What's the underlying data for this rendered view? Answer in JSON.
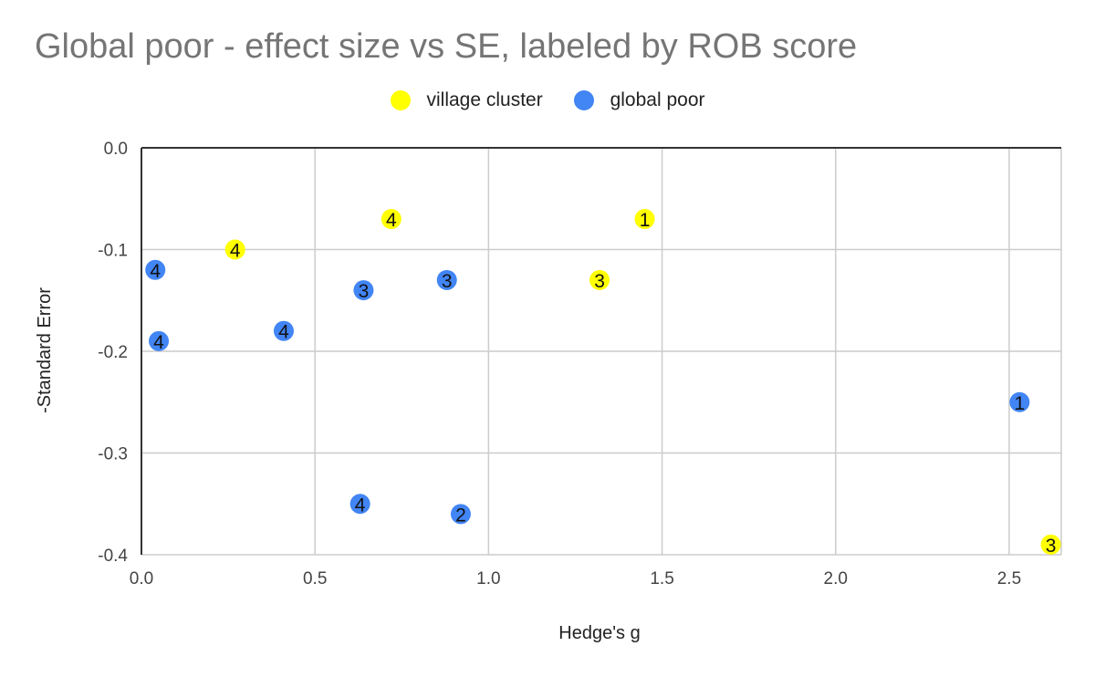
{
  "chart_data": {
    "type": "scatter",
    "title": "Global poor - effect size vs SE, labeled by ROB score",
    "xlabel": "Hedge's g",
    "ylabel": "-Standard Error",
    "xlim": [
      0.0,
      2.65
    ],
    "ylim": [
      -0.4,
      0.0
    ],
    "x_ticks": [
      "0.0",
      "0.5",
      "1.0",
      "1.5",
      "2.0",
      "2.5"
    ],
    "y_ticks": [
      "0.0",
      "-0.1",
      "-0.2",
      "-0.3",
      "-0.4"
    ],
    "legend_position": "top-center",
    "grid": true,
    "series": [
      {
        "name": "village cluster",
        "color": "#ffff00",
        "points": [
          {
            "x": 0.27,
            "y": -0.1,
            "label": "4"
          },
          {
            "x": 0.72,
            "y": -0.07,
            "label": "4"
          },
          {
            "x": 1.45,
            "y": -0.07,
            "label": "1"
          },
          {
            "x": 1.32,
            "y": -0.13,
            "label": "3"
          },
          {
            "x": 2.62,
            "y": -0.39,
            "label": "3"
          }
        ]
      },
      {
        "name": "global poor",
        "color": "#4285f4",
        "points": [
          {
            "x": 0.04,
            "y": -0.12,
            "label": "4"
          },
          {
            "x": 0.05,
            "y": -0.19,
            "label": "4"
          },
          {
            "x": 0.41,
            "y": -0.18,
            "label": "4"
          },
          {
            "x": 0.64,
            "y": -0.14,
            "label": "3"
          },
          {
            "x": 0.88,
            "y": -0.13,
            "label": "3"
          },
          {
            "x": 0.63,
            "y": -0.35,
            "label": "4"
          },
          {
            "x": 0.92,
            "y": -0.36,
            "label": "2"
          },
          {
            "x": 2.53,
            "y": -0.25,
            "label": "1"
          }
        ]
      }
    ]
  }
}
